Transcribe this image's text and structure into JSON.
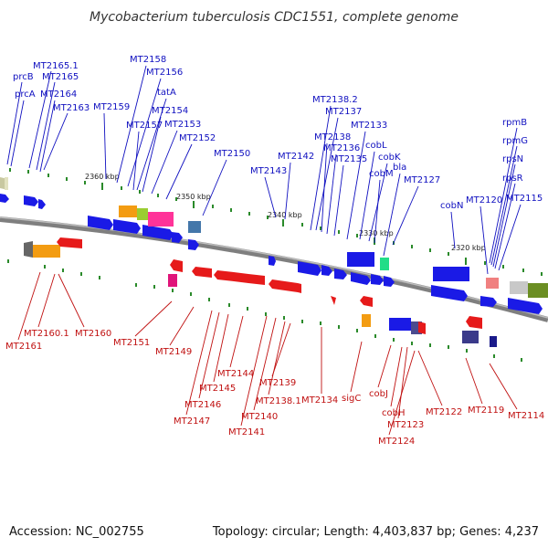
{
  "title": "Mycobacterium tuberculosis CDC1551, complete genome",
  "footer": {
    "accession": "Accession: NC_002755",
    "stats": "Topology: circular; Length: 4,403,837 bp; Genes: 4,237"
  },
  "ticks": [
    "2360 kbp",
    "2350 kbp",
    "2340 kbp",
    "2330 kbp",
    "2320 kbp"
  ],
  "colors": {
    "backbone": "#808080",
    "forward_gene": "#1a1ae6",
    "reverse_gene": "#e61a1a",
    "forward_label": "#1010c0",
    "reverse_label": "#c01010",
    "tick": "#2a8a2a"
  },
  "forward_labels": [
    {
      "text": "MT2165.1"
    },
    {
      "text": "prcB"
    },
    {
      "text": "MT2165"
    },
    {
      "text": "prcA"
    },
    {
      "text": "MT2164"
    },
    {
      "text": "MT2163"
    },
    {
      "text": "MT2159"
    },
    {
      "text": "MT2158"
    },
    {
      "text": "MT2156"
    },
    {
      "text": "tatA"
    },
    {
      "text": "MT2154"
    },
    {
      "text": "MT2157"
    },
    {
      "text": "MT2153"
    },
    {
      "text": "MT2152"
    },
    {
      "text": "MT2150"
    },
    {
      "text": "MT2143"
    },
    {
      "text": "MT2142"
    },
    {
      "text": "MT2138.2"
    },
    {
      "text": "MT2137"
    },
    {
      "text": "MT2138"
    },
    {
      "text": "MT2136"
    },
    {
      "text": "MT2135"
    },
    {
      "text": "MT2133"
    },
    {
      "text": "cobL"
    },
    {
      "text": "cobK"
    },
    {
      "text": "cobM"
    },
    {
      "text": "bla"
    },
    {
      "text": "MT2127"
    },
    {
      "text": "cobN"
    },
    {
      "text": "MT2120"
    },
    {
      "text": "MT2115"
    },
    {
      "text": "rpmB"
    },
    {
      "text": "rpmG"
    },
    {
      "text": "rpsN"
    },
    {
      "text": "rpsR"
    }
  ],
  "reverse_labels": [
    {
      "text": "MT2160.1"
    },
    {
      "text": "MT2161"
    },
    {
      "text": "MT2160"
    },
    {
      "text": "MT2151"
    },
    {
      "text": "MT2149"
    },
    {
      "text": "MT2144"
    },
    {
      "text": "MT2145"
    },
    {
      "text": "MT2146"
    },
    {
      "text": "MT2147"
    },
    {
      "text": "MT2139"
    },
    {
      "text": "MT2138.1"
    },
    {
      "text": "MT2140"
    },
    {
      "text": "MT2141"
    },
    {
      "text": "MT2134"
    },
    {
      "text": "sigC"
    },
    {
      "text": "cobJ"
    },
    {
      "text": "cobH"
    },
    {
      "text": "MT2123"
    },
    {
      "text": "MT2124"
    },
    {
      "text": "MT2122"
    },
    {
      "text": "MT2119"
    },
    {
      "text": "MT2114"
    }
  ]
}
